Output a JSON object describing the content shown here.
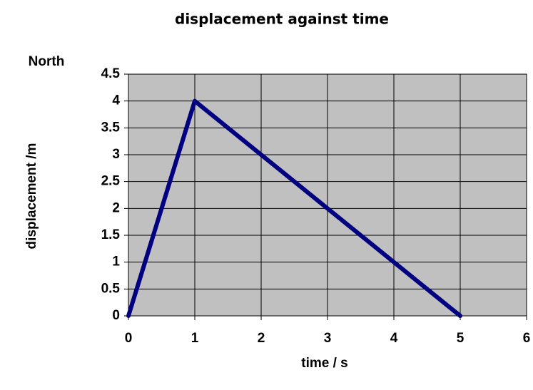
{
  "chart_data": {
    "type": "line",
    "title": "displacement against time",
    "annotation": "North",
    "x_label": "time / s",
    "y_label": "displacement /m",
    "x": [
      0,
      1,
      5
    ],
    "series": [
      {
        "name": "displacement",
        "color": "#000080",
        "values": [
          0,
          4,
          0
        ]
      }
    ],
    "xlim": [
      0,
      6
    ],
    "xticks": [
      0,
      1,
      2,
      3,
      4,
      5,
      6
    ],
    "ylim": [
      0,
      4.5
    ],
    "yticks": [
      0,
      0.5,
      1,
      1.5,
      2,
      2.5,
      3,
      3.5,
      4,
      4.5
    ],
    "grid": true,
    "plot_background": "#c0c0c0"
  }
}
